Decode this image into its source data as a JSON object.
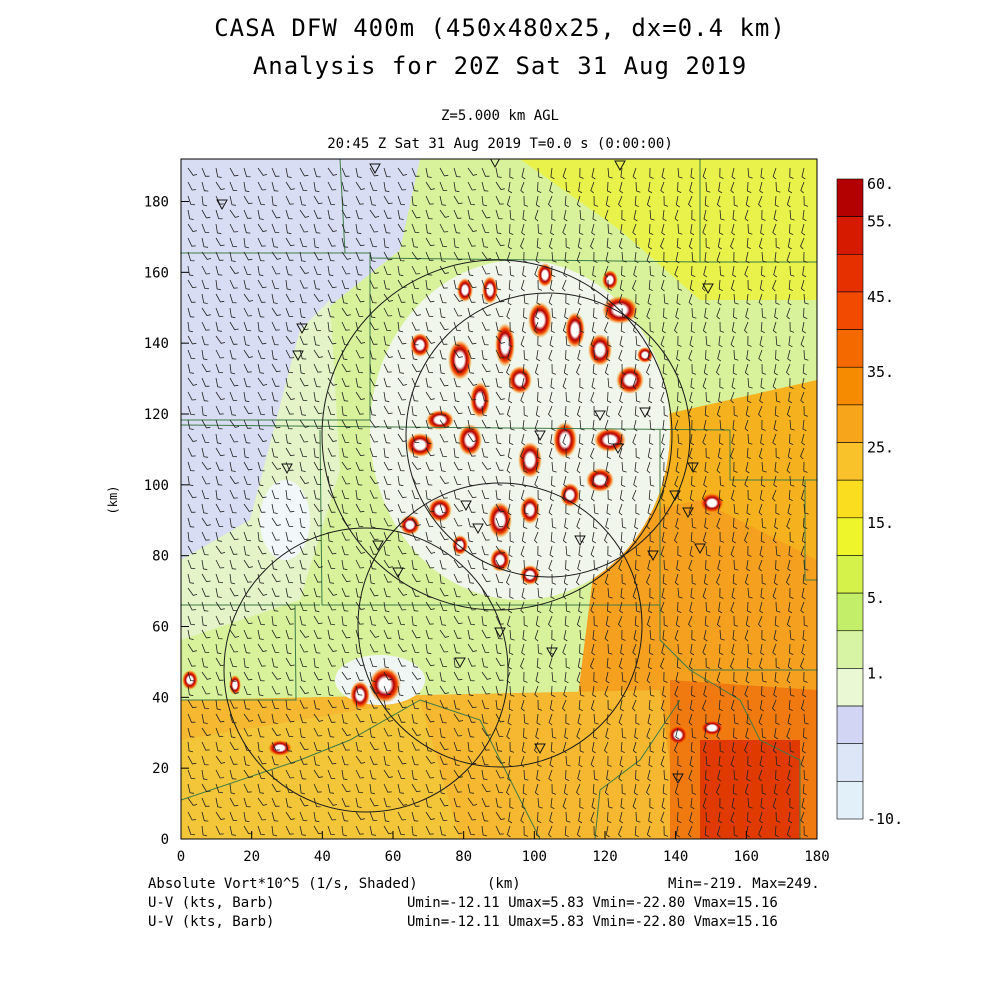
{
  "header": {
    "title": "CASA DFW 400m (450x480x25, dx=0.4 km)",
    "subtitle": "Analysis for 20Z Sat 31 Aug 2019",
    "level": "Z=5.000 km AGL",
    "time": "20:45 Z Sat 31 Aug 2019    T=0.0 s (0:00:00)"
  },
  "axes": {
    "x_ticks": [
      "0",
      "20",
      "40",
      "60",
      "80",
      "100",
      "120",
      "140",
      "160",
      "180"
    ],
    "y_ticks": [
      "0",
      "20",
      "40",
      "60",
      "80",
      "100",
      "120",
      "140",
      "160",
      "180"
    ],
    "x_label": "(km)",
    "y_label": "(km)",
    "x_range": [
      0,
      180
    ],
    "y_range": [
      0,
      192
    ]
  },
  "colorbar": {
    "labels": [
      "60.",
      "55.",
      "45.",
      "35.",
      "25.",
      "15.",
      "5.",
      "1.",
      "-10."
    ],
    "colors": [
      "#b30000",
      "#d61a00",
      "#e63000",
      "#f24a00",
      "#f56a00",
      "#f68a00",
      "#f7a51a",
      "#f9c22a",
      "#fadd1e",
      "#eef52a",
      "#d4f24a",
      "#c2ee6a",
      "#d6f4a4",
      "#eaf8d4",
      "#d2d6f4",
      "#dde6f6",
      "#e2f0fa"
    ]
  },
  "footer": {
    "field": "Absolute Vort*10^5 (1/s, Shaded)",
    "x_unit": "(km)",
    "minmax": "Min=-219. Max=249.",
    "barb1": "U-V (kts, Barb)",
    "range1": "Umin=-12.11 Umax=5.83 Vmin=-22.80 Vmax=15.16",
    "barb2": "U-V (kts, Barb)",
    "range2": "Umin=-12.11 Umax=5.83 Vmin=-22.80 Vmax=15.16"
  }
}
